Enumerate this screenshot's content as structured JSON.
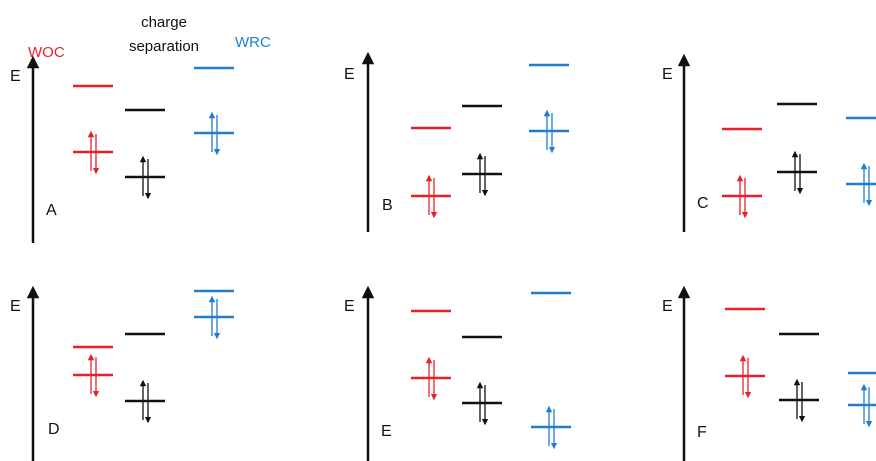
{
  "legend": {
    "woc": "WOC",
    "charge_separation_line1": "charge",
    "charge_separation_line2": "separation",
    "wrc": "WRC"
  },
  "axis_label": "E",
  "colors": {
    "woc": "#e8202a",
    "cs": "#111111",
    "wrc": "#1e7fd0"
  },
  "panels": [
    {
      "label": "A"
    },
    {
      "label": "B"
    },
    {
      "label": "C"
    },
    {
      "label": "D"
    },
    {
      "label": "E"
    },
    {
      "label": "F"
    }
  ]
}
